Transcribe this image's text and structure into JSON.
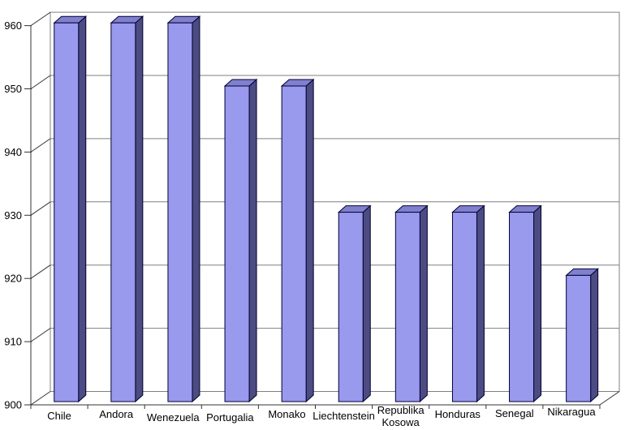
{
  "chart_data": {
    "type": "bar",
    "style": "3d-bar",
    "title": "",
    "xlabel": "",
    "ylabel": "",
    "categories": [
      "Chile",
      "Andora",
      "Wenezuela",
      "Portugalia",
      "Monako",
      "Liechtenstein",
      "Republika Kosowa",
      "Honduras",
      "Senegal",
      "Nikaragua"
    ],
    "values": [
      960,
      960,
      960,
      950,
      950,
      930,
      930,
      930,
      930,
      920
    ],
    "ylim": [
      900,
      960
    ],
    "yticks": [
      900,
      910,
      920,
      930,
      940,
      950,
      960
    ],
    "grid": true,
    "legend": false,
    "colors": {
      "bar_front": "#9999ee",
      "bar_top": "#8080cf",
      "bar_side": "#4c4c82",
      "bar_outline": "#000033",
      "wall_line": "#808080",
      "grid_line": "#808080",
      "axis_line": "#333333",
      "text": "#000000",
      "background": "#ffffff"
    }
  }
}
